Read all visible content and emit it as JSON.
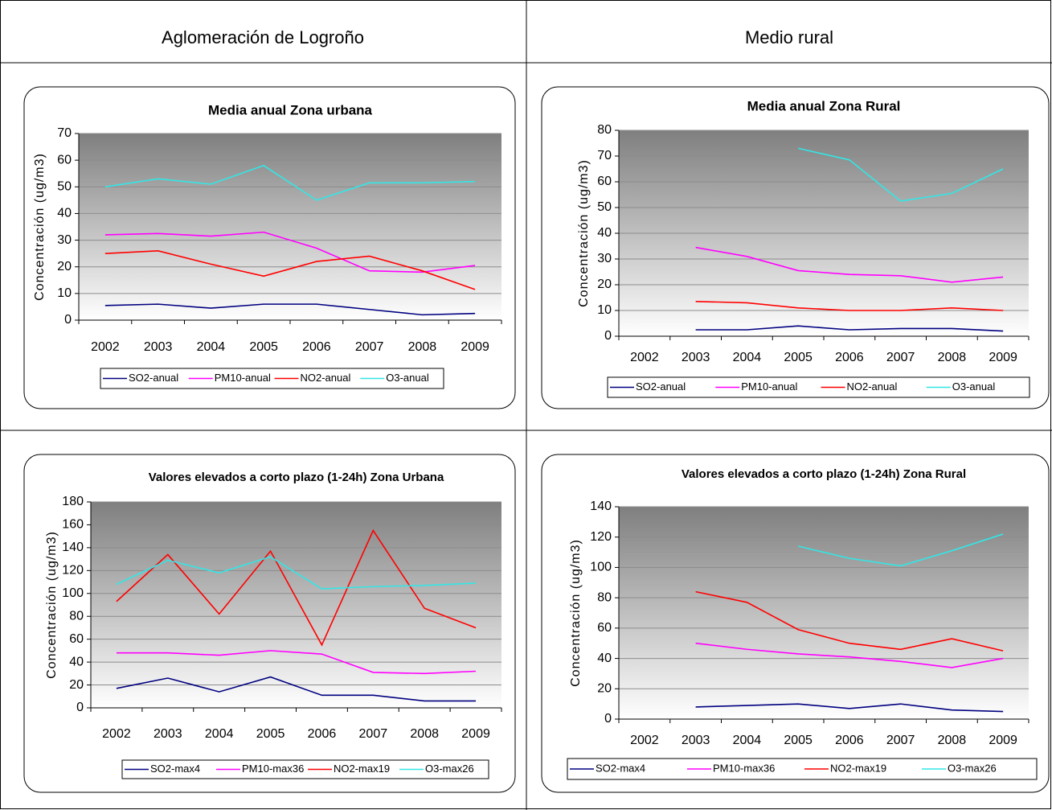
{
  "table": {
    "headers": [
      "Aglomeración de Logroño",
      "Medio rural"
    ]
  },
  "chart_data": [
    {
      "type": "line",
      "title": "Media anual Zona urbana",
      "y_label": "Concentración (ug/m3)",
      "categories": [
        "2002",
        "2003",
        "2004",
        "2005",
        "2006",
        "2007",
        "2008",
        "2009"
      ],
      "ylim": [
        0,
        70
      ],
      "yticks": [
        0,
        10,
        20,
        30,
        40,
        50,
        60,
        70
      ],
      "grid": true,
      "legend": "bottom",
      "series": [
        {
          "name": "SO2-anual",
          "color": "#000080",
          "values": [
            5.5,
            6,
            4.5,
            6,
            6,
            4,
            2,
            2.5
          ]
        },
        {
          "name": "PM10-anual",
          "color": "#ff00ff",
          "values": [
            32,
            32.5,
            31.5,
            33,
            27,
            18.5,
            18,
            20.5
          ]
        },
        {
          "name": "NO2-anual",
          "color": "#ff0000",
          "values": [
            25,
            26,
            21,
            16.5,
            22,
            24,
            18.5,
            11.5
          ]
        },
        {
          "name": "O3-anual",
          "color": "#33e6e6",
          "values": [
            50,
            53,
            51,
            58,
            45,
            51.5,
            51.5,
            52
          ]
        }
      ]
    },
    {
      "type": "line",
      "title": "Media anual Zona Rural",
      "y_label": "Concentración (ug/m3)",
      "categories": [
        "2002",
        "2003",
        "2004",
        "2005",
        "2006",
        "2007",
        "2008",
        "2009"
      ],
      "ylim": [
        0,
        80
      ],
      "yticks": [
        0,
        10,
        20,
        30,
        40,
        50,
        60,
        70,
        80
      ],
      "grid": true,
      "legend": "bottom",
      "series": [
        {
          "name": "SO2-anual",
          "color": "#000080",
          "values": [
            null,
            2.5,
            2.5,
            4,
            2.5,
            3,
            3,
            2
          ]
        },
        {
          "name": "PM10-anual",
          "color": "#ff00ff",
          "values": [
            null,
            34.5,
            31,
            25.5,
            24,
            23.5,
            21,
            23
          ]
        },
        {
          "name": "NO2-anual",
          "color": "#ff0000",
          "values": [
            null,
            13.5,
            13,
            11,
            10,
            10,
            11,
            10
          ]
        },
        {
          "name": "O3-anual",
          "color": "#33e6e6",
          "values": [
            null,
            null,
            null,
            73,
            68.5,
            52.5,
            55.5,
            65
          ]
        }
      ]
    },
    {
      "type": "line",
      "title": "Valores elevados a corto plazo (1-24h) Zona Urbana",
      "y_label": "Concentración (ug/m3)",
      "categories": [
        "2002",
        "2003",
        "2004",
        "2005",
        "2006",
        "2007",
        "2008",
        "2009"
      ],
      "ylim": [
        0,
        180
      ],
      "yticks": [
        0,
        20,
        40,
        60,
        80,
        100,
        120,
        140,
        160,
        180
      ],
      "grid": true,
      "legend": "bottom",
      "series": [
        {
          "name": "SO2-max4",
          "color": "#000080",
          "values": [
            17,
            26,
            14,
            27,
            11,
            11,
            6,
            6
          ]
        },
        {
          "name": "PM10-max36",
          "color": "#ff00ff",
          "values": [
            48,
            48,
            46,
            50,
            47,
            31,
            30,
            32
          ]
        },
        {
          "name": "NO2-max19",
          "color": "#ff0000",
          "values": [
            93,
            134,
            82,
            137,
            55,
            155,
            87,
            70
          ]
        },
        {
          "name": "O3-max26",
          "color": "#33e6e6",
          "values": [
            108,
            129,
            118,
            132,
            104,
            106,
            107,
            109
          ]
        }
      ]
    },
    {
      "type": "line",
      "title": "Valores elevados a corto plazo (1-24h) Zona Rural",
      "y_label": "Concentración (ug/m3)",
      "categories": [
        "2002",
        "2003",
        "2004",
        "2005",
        "2006",
        "2007",
        "2008",
        "2009"
      ],
      "ylim": [
        0,
        140
      ],
      "yticks": [
        0,
        20,
        40,
        60,
        80,
        100,
        120,
        140
      ],
      "grid": true,
      "legend": "bottom",
      "series": [
        {
          "name": "SO2-max4",
          "color": "#000080",
          "values": [
            null,
            8,
            9,
            10,
            7,
            10,
            6,
            5
          ]
        },
        {
          "name": "PM10-max36",
          "color": "#ff00ff",
          "values": [
            null,
            50,
            46,
            43,
            41,
            38,
            34,
            40
          ]
        },
        {
          "name": "NO2-max19",
          "color": "#ff0000",
          "values": [
            null,
            84,
            77,
            59,
            50,
            46,
            53,
            45
          ]
        },
        {
          "name": "O3-max26",
          "color": "#33e6e6",
          "values": [
            null,
            null,
            null,
            114,
            106,
            101,
            111,
            122
          ]
        }
      ]
    }
  ]
}
